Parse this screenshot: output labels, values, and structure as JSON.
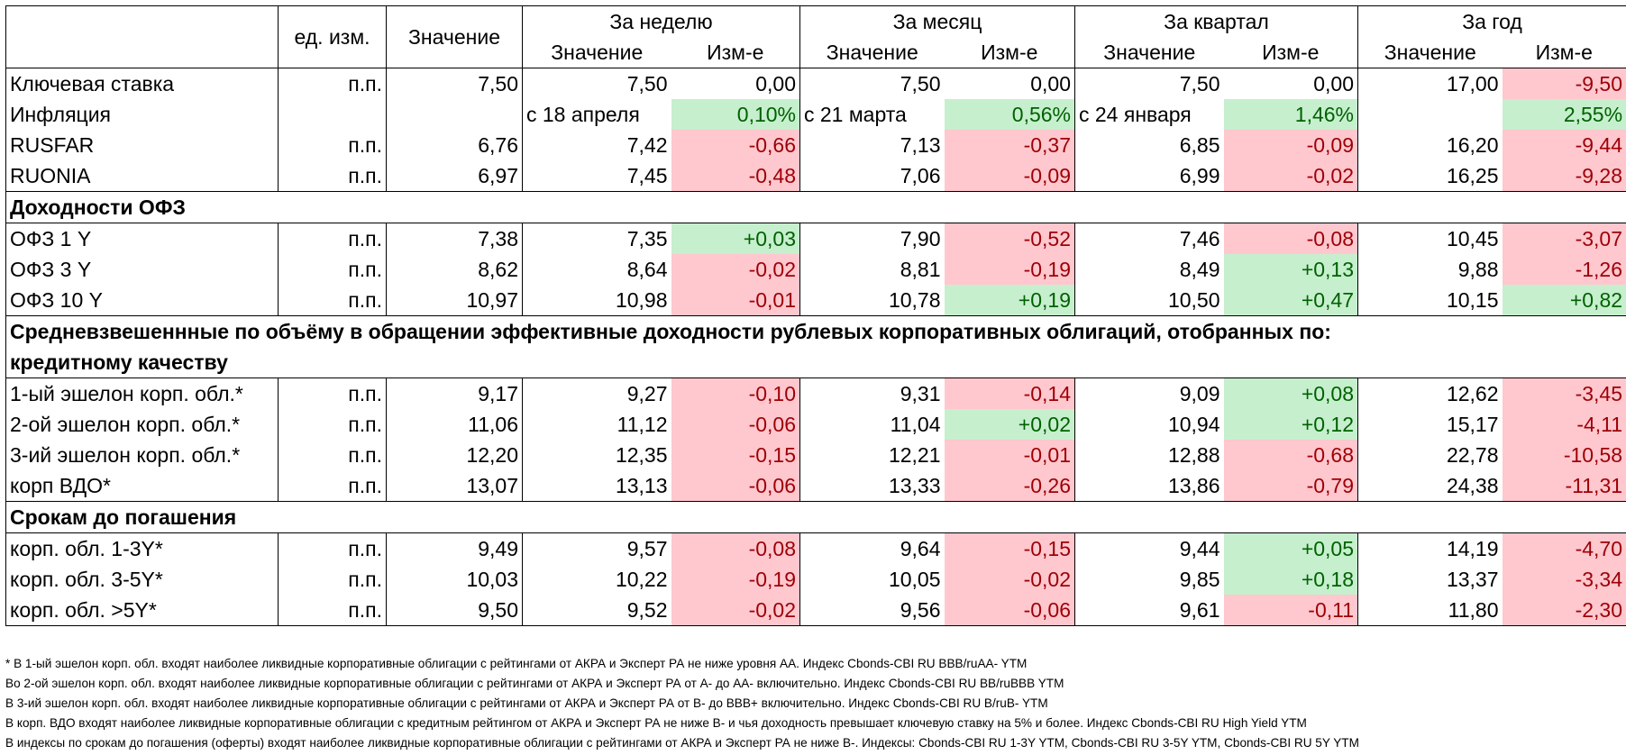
{
  "header": {
    "unit_col": "ед. изм.",
    "value_col": "Значение",
    "periods": [
      "За неделю",
      "За месяц",
      "За квартал",
      "За год"
    ],
    "sub_value": "Значение",
    "sub_change": "Изм-е"
  },
  "block1": [
    {
      "name": "Ключевая ставка",
      "unit": "п.п.",
      "value": "7,50",
      "w": "7,50",
      "wc": "0,00",
      "wt": "",
      "m": "7,50",
      "mc": "0,00",
      "mt": "",
      "q": "7,50",
      "qc": "0,00",
      "qt": "",
      "y": "17,00",
      "yc": "-9,50",
      "yt": "neg"
    },
    {
      "name": "Инфляция",
      "unit": "",
      "value": "",
      "w": "с 18 апреля",
      "wc": "0,10%",
      "wt": "pos",
      "m": "с 21 марта",
      "mc": "0,56%",
      "mt": "pos",
      "q": "с 24 января",
      "qc": "1,46%",
      "qt": "pos",
      "y": "",
      "yc": "2,55%",
      "yt": "pos"
    },
    {
      "name": "RUSFAR",
      "unit": "п.п.",
      "value": "6,76",
      "w": "7,42",
      "wc": "-0,66",
      "wt": "neg",
      "m": "7,13",
      "mc": "-0,37",
      "mt": "neg",
      "q": "6,85",
      "qc": "-0,09",
      "qt": "neg",
      "y": "16,20",
      "yc": "-9,44",
      "yt": "neg"
    },
    {
      "name": "RUONIA",
      "unit": "п.п.",
      "value": "6,97",
      "w": "7,45",
      "wc": "-0,48",
      "wt": "neg",
      "m": "7,06",
      "mc": "-0,09",
      "mt": "neg",
      "q": "6,99",
      "qc": "-0,02",
      "qt": "neg",
      "y": "16,25",
      "yc": "-9,28",
      "yt": "neg"
    }
  ],
  "section_ofz": "Доходности ОФЗ",
  "block2": [
    {
      "name": "ОФЗ 1 Y",
      "unit": "п.п.",
      "value": "7,38",
      "w": "7,35",
      "wc": "+0,03",
      "wt": "pos",
      "m": "7,90",
      "mc": "-0,52",
      "mt": "neg",
      "q": "7,46",
      "qc": "-0,08",
      "qt": "neg",
      "y": "10,45",
      "yc": "-3,07",
      "yt": "neg"
    },
    {
      "name": "ОФЗ 3 Y",
      "unit": "п.п.",
      "value": "8,62",
      "w": "8,64",
      "wc": "-0,02",
      "wt": "neg",
      "m": "8,81",
      "mc": "-0,19",
      "mt": "neg",
      "q": "8,49",
      "qc": "+0,13",
      "qt": "pos",
      "y": "9,88",
      "yc": "-1,26",
      "yt": "neg"
    },
    {
      "name": "ОФЗ 10 Y",
      "unit": "п.п.",
      "value": "10,97",
      "w": "10,98",
      "wc": "-0,01",
      "wt": "neg",
      "m": "10,78",
      "mc": "+0,19",
      "mt": "pos",
      "q": "10,50",
      "qc": "+0,47",
      "qt": "pos",
      "y": "10,15",
      "yc": "+0,82",
      "yt": "pos"
    }
  ],
  "section_corp_line1": "Средневзвешеннные по объёму в обращении эффективные доходности рублевых корпоративных облигаций, отобранных по:",
  "section_corp_line2": "кредитному качеству",
  "block3": [
    {
      "name": "1-ый эшелон корп. обл.*",
      "unit": "п.п.",
      "value": "9,17",
      "w": "9,27",
      "wc": "-0,10",
      "wt": "neg",
      "m": "9,31",
      "mc": "-0,14",
      "mt": "neg",
      "q": "9,09",
      "qc": "+0,08",
      "qt": "pos",
      "y": "12,62",
      "yc": "-3,45",
      "yt": "neg"
    },
    {
      "name": "2-ой эшелон корп. обл.*",
      "unit": "п.п.",
      "value": "11,06",
      "w": "11,12",
      "wc": "-0,06",
      "wt": "neg",
      "m": "11,04",
      "mc": "+0,02",
      "mt": "pos",
      "q": "10,94",
      "qc": "+0,12",
      "qt": "pos",
      "y": "15,17",
      "yc": "-4,11",
      "yt": "neg"
    },
    {
      "name": "3-ий эшелон корп. обл.*",
      "unit": "п.п.",
      "value": "12,20",
      "w": "12,35",
      "wc": "-0,15",
      "wt": "neg",
      "m": "12,21",
      "mc": "-0,01",
      "mt": "neg",
      "q": "12,88",
      "qc": "-0,68",
      "qt": "neg",
      "y": "22,78",
      "yc": "-10,58",
      "yt": "neg"
    },
    {
      "name": "корп ВДО*",
      "unit": "п.п.",
      "value": "13,07",
      "w": "13,13",
      "wc": "-0,06",
      "wt": "neg",
      "m": "13,33",
      "mc": "-0,26",
      "mt": "neg",
      "q": "13,86",
      "qc": "-0,79",
      "qt": "neg",
      "y": "24,38",
      "yc": "-11,31",
      "yt": "neg"
    }
  ],
  "section_maturity": "Срокам до погашения",
  "block4": [
    {
      "name": "корп. обл. 1-3Y*",
      "unit": "п.п.",
      "value": "9,49",
      "w": "9,57",
      "wc": "-0,08",
      "wt": "neg",
      "m": "9,64",
      "mc": "-0,15",
      "mt": "neg",
      "q": "9,44",
      "qc": "+0,05",
      "qt": "pos",
      "y": "14,19",
      "yc": "-4,70",
      "yt": "neg"
    },
    {
      "name": "корп. обл. 3-5Y*",
      "unit": "п.п.",
      "value": "10,03",
      "w": "10,22",
      "wc": "-0,19",
      "wt": "neg",
      "m": "10,05",
      "mc": "-0,02",
      "mt": "neg",
      "q": "9,85",
      "qc": "+0,18",
      "qt": "pos",
      "y": "13,37",
      "yc": "-3,34",
      "yt": "neg"
    },
    {
      "name": "корп. обл. >5Y*",
      "unit": "п.п.",
      "value": "9,50",
      "w": "9,52",
      "wc": "-0,02",
      "wt": "neg",
      "m": "9,56",
      "mc": "-0,06",
      "mt": "neg",
      "q": "9,61",
      "qc": "-0,11",
      "qt": "neg",
      "y": "11,80",
      "yc": "-2,30",
      "yt": "neg"
    }
  ],
  "footnotes": [
    "* В 1-ый эшелон корп. обл. входят наиболее ликвидные корпоративные облигации с рейтингами от АКРА и Эксперт РА не ниже уровня АА. Индекс Cbonds-CBI RU BBB/ruAA- YTM",
    "Во 2-ой эшелон корп. обл. входят наиболее ликвидные корпоративные облигации с рейтингами от АКРА и Эксперт РА от А- до АА- включительно.  Индекс Cbonds-CBI RU BB/ruBBB YTM",
    "В 3-ий эшелон корп. обл. входят наиболее ликвидные корпоративные облигации с рейтингами от АКРА и Эксперт РА от В- до ВВВ+ включительно.  Индекс Cbonds-CBI RU B/ruB- YTM",
    "В корп. ВДО входят наиболее ликвидные корпоративные облигации с кредитным рейтингом от АКРА и Эксперт РА не ниже В- и чья доходность превышает ключевую ставку на 5% и более. Индекс  Cbonds-CBI RU High Yield YTM",
    "В индексы по срокам до погашения (оферты) входят наиболее ликвидные корпоративные облигации с рейтингами от АКРА и Эксперт РА не ниже В-. Индексы:  Cbonds-CBI RU 1-3Y YTM, Cbonds-CBI RU 3-5Y YTM, Cbonds-CBI RU 5Y YTM"
  ],
  "colors": {
    "positive_bg": "#c6efce",
    "positive_text": "#006100",
    "negative_bg": "#ffc7ce",
    "negative_text": "#9c0006"
  }
}
